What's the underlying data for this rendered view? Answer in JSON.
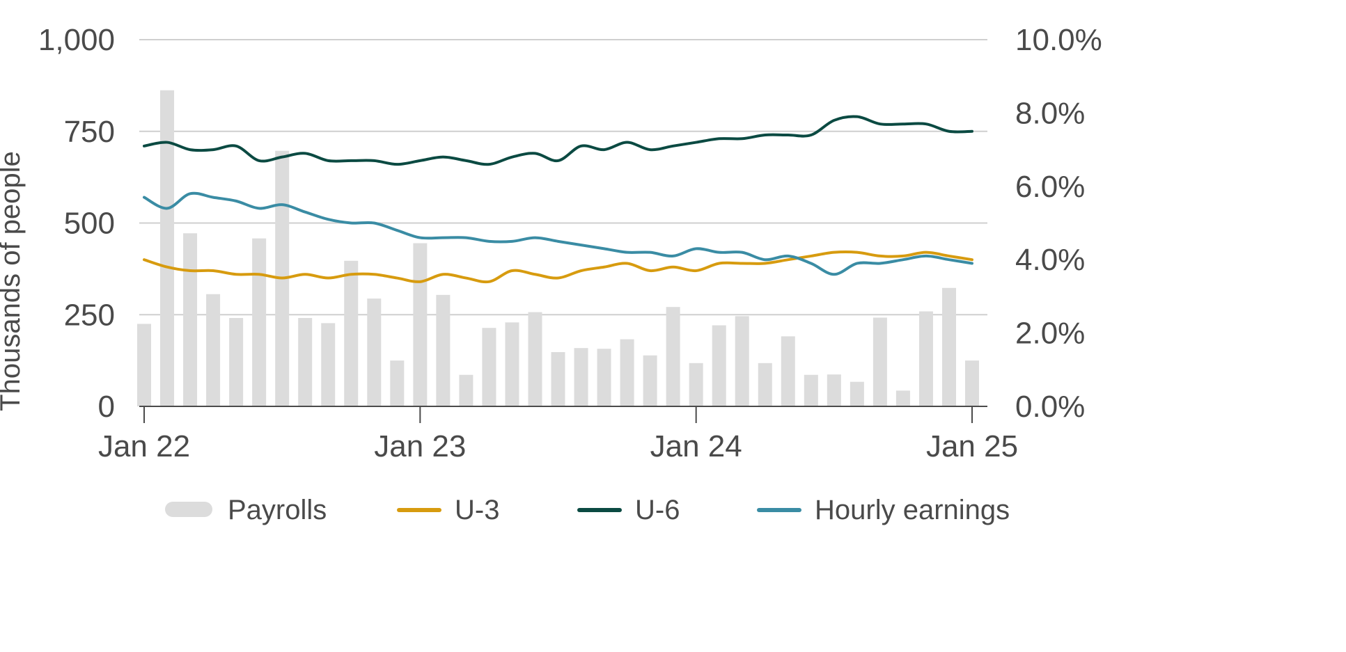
{
  "chart_data": {
    "type": "bar+line",
    "x": [
      "2022-01",
      "2022-02",
      "2022-03",
      "2022-04",
      "2022-05",
      "2022-06",
      "2022-07",
      "2022-08",
      "2022-09",
      "2022-10",
      "2022-11",
      "2022-12",
      "2023-01",
      "2023-02",
      "2023-03",
      "2023-04",
      "2023-05",
      "2023-06",
      "2023-07",
      "2023-08",
      "2023-09",
      "2023-10",
      "2023-11",
      "2023-12",
      "2024-01",
      "2024-02",
      "2024-03",
      "2024-04",
      "2024-05",
      "2024-06",
      "2024-07",
      "2024-08",
      "2024-09",
      "2024-10",
      "2024-11",
      "2024-12",
      "2025-01"
    ],
    "x_ticks": [
      {
        "index": 0,
        "label": "Jan 22"
      },
      {
        "index": 12,
        "label": "Jan 23"
      },
      {
        "index": 24,
        "label": "Jan 24"
      },
      {
        "index": 36,
        "label": "Jan 25"
      }
    ],
    "ylabel": "Thousands of people",
    "y_left": {
      "min": 0,
      "max": 1000,
      "ticks": [
        "0",
        "250",
        "500",
        "750",
        "1,000"
      ],
      "tick_values": [
        0,
        250,
        500,
        750,
        1000
      ]
    },
    "y_right": {
      "min": 0,
      "max": 10,
      "ticks": [
        "0.0%",
        "2.0%",
        "4.0%",
        "6.0%",
        "8.0%",
        "10.0%"
      ],
      "tick_values": [
        0,
        2,
        4,
        6,
        8,
        10
      ]
    },
    "grid": true,
    "legend_position": "bottom",
    "series": [
      {
        "name": "Payrolls",
        "type": "bar",
        "axis": "left",
        "color": "#dcdcdc",
        "values": [
          225,
          862,
          472,
          306,
          241,
          458,
          697,
          241,
          227,
          397,
          294,
          125,
          445,
          304,
          86,
          214,
          229,
          257,
          148,
          159,
          157,
          183,
          139,
          271,
          118,
          221,
          246,
          118,
          191,
          86,
          87,
          67,
          242,
          43,
          259,
          323,
          125
        ]
      },
      {
        "name": "U-3",
        "type": "line",
        "axis": "right",
        "color": "#d79b0f",
        "values": [
          4.0,
          3.8,
          3.7,
          3.7,
          3.6,
          3.6,
          3.5,
          3.6,
          3.5,
          3.6,
          3.6,
          3.5,
          3.4,
          3.6,
          3.5,
          3.4,
          3.7,
          3.6,
          3.5,
          3.7,
          3.8,
          3.9,
          3.7,
          3.8,
          3.7,
          3.9,
          3.9,
          3.9,
          4.0,
          4.1,
          4.2,
          4.2,
          4.1,
          4.1,
          4.2,
          4.1,
          4.0
        ]
      },
      {
        "name": "U-6",
        "type": "line",
        "axis": "right",
        "color": "#0b4a42",
        "values": [
          7.1,
          7.2,
          7.0,
          7.0,
          7.1,
          6.7,
          6.8,
          6.9,
          6.7,
          6.7,
          6.7,
          6.6,
          6.7,
          6.8,
          6.7,
          6.6,
          6.8,
          6.9,
          6.7,
          7.1,
          7.0,
          7.2,
          7.0,
          7.1,
          7.2,
          7.3,
          7.3,
          7.4,
          7.4,
          7.4,
          7.8,
          7.9,
          7.7,
          7.7,
          7.7,
          7.5,
          7.5
        ]
      },
      {
        "name": "Hourly earnings",
        "type": "line",
        "axis": "right",
        "color": "#3a8ca4",
        "values": [
          5.7,
          5.4,
          5.8,
          5.7,
          5.6,
          5.4,
          5.5,
          5.3,
          5.1,
          5.0,
          5.0,
          4.8,
          4.6,
          4.6,
          4.6,
          4.5,
          4.5,
          4.6,
          4.5,
          4.4,
          4.3,
          4.2,
          4.2,
          4.1,
          4.3,
          4.2,
          4.2,
          4.0,
          4.1,
          3.9,
          3.6,
          3.9,
          3.9,
          4.0,
          4.1,
          4.0,
          3.9
        ]
      }
    ]
  }
}
